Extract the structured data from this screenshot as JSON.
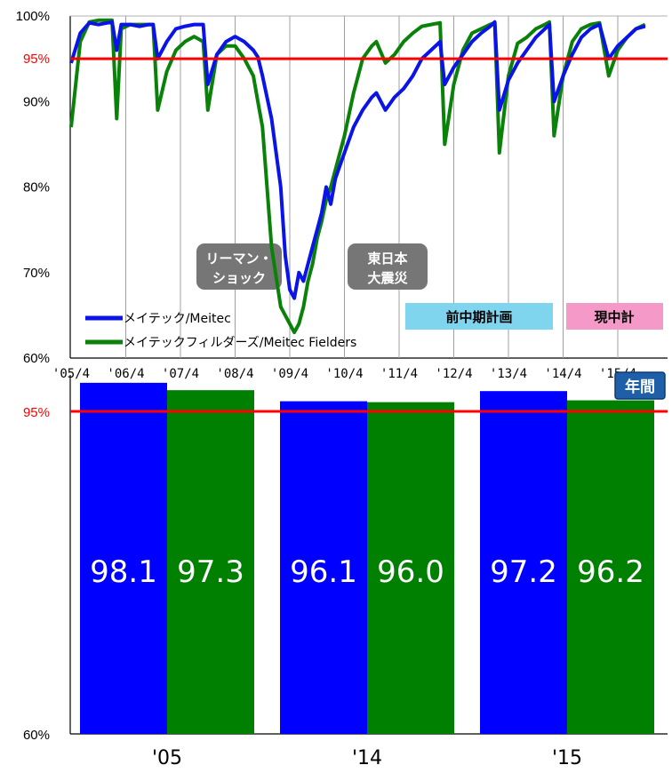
{
  "chart_data": [
    {
      "type": "line",
      "y_ticks": [
        "100%",
        "95%",
        "90%",
        "80%",
        "70%",
        "60%"
      ],
      "x_ticks": [
        "'05/4",
        "'06/4",
        "'07/4",
        "'08/4",
        "'09/4",
        "'10/4",
        "'11/4",
        "'12/4",
        "'13/4",
        "'14/4",
        "'15/4"
      ],
      "ylim": [
        60,
        100
      ],
      "x_start": "'05/4",
      "reference_line": {
        "value": 95,
        "label": "95%",
        "color": "#ff0000"
      },
      "grid": "vertical",
      "legend_position": "bottom-left",
      "annotations": [
        {
          "lines": [
            "リーマン・",
            "ショック"
          ],
          "at": "'08/10"
        },
        {
          "lines": [
            "東日本",
            "大震災"
          ],
          "at": "'11/3"
        }
      ],
      "period_tags": [
        {
          "label": "前中期計画",
          "color": "#7fd4ee",
          "from": "'11/4",
          "to": "'14/3"
        },
        {
          "label": "現中計",
          "color": "#f59ac8",
          "from": "'14/4",
          "to": "'16/3"
        }
      ],
      "series": [
        {
          "name": "メイテック/Meitec",
          "color": "#0a14e6",
          "points": [
            [
              0,
              94.5
            ],
            [
              2,
              98
            ],
            [
              4,
              99.2
            ],
            [
              6,
              99
            ],
            [
              8,
              99.2
            ],
            [
              9,
              99.3
            ],
            [
              10,
              96
            ],
            [
              11,
              99
            ],
            [
              13,
              99
            ],
            [
              15,
              98.8
            ],
            [
              17,
              99
            ],
            [
              18,
              99
            ],
            [
              19,
              95
            ],
            [
              21,
              97
            ],
            [
              23,
              98.5
            ],
            [
              25,
              98.8
            ],
            [
              27,
              99
            ],
            [
              29,
              99
            ],
            [
              30,
              92
            ],
            [
              32,
              95.5
            ],
            [
              34,
              97
            ],
            [
              36,
              97.6
            ],
            [
              38,
              97
            ],
            [
              40,
              96
            ],
            [
              41,
              95.2
            ],
            [
              42,
              93
            ],
            [
              44,
              88
            ],
            [
              46,
              80
            ],
            [
              47,
              72
            ],
            [
              48,
              68
            ],
            [
              49,
              67
            ],
            [
              50,
              70
            ],
            [
              51,
              69
            ],
            [
              52,
              71
            ],
            [
              53,
              73
            ],
            [
              54,
              75
            ],
            [
              55,
              77
            ],
            [
              56,
              80
            ],
            [
              57,
              78
            ],
            [
              58,
              81
            ],
            [
              60,
              84
            ],
            [
              62,
              87
            ],
            [
              64,
              89
            ],
            [
              66,
              90.5
            ],
            [
              67,
              91
            ],
            [
              69,
              89
            ],
            [
              71,
              90.5
            ],
            [
              73,
              91.5
            ],
            [
              75,
              93
            ],
            [
              77,
              95
            ],
            [
              79,
              96
            ],
            [
              81,
              97
            ],
            [
              82,
              92
            ],
            [
              84,
              94
            ],
            [
              86,
              95.5
            ],
            [
              88,
              97
            ],
            [
              90,
              98
            ],
            [
              92,
              98.8
            ],
            [
              93,
              99.3
            ],
            [
              94,
              89
            ],
            [
              96,
              92.5
            ],
            [
              98,
              94.5
            ],
            [
              100,
              96
            ],
            [
              102,
              97.5
            ],
            [
              104,
              98.5
            ],
            [
              105,
              99
            ],
            [
              106,
              90
            ],
            [
              108,
              93
            ],
            [
              110,
              95.5
            ],
            [
              112,
              97.5
            ],
            [
              114,
              98.5
            ],
            [
              116,
              99
            ],
            [
              118,
              95
            ],
            [
              120,
              96.5
            ],
            [
              122,
              97.5
            ],
            [
              124,
              98.5
            ],
            [
              126,
              98.8
            ]
          ]
        },
        {
          "name": "メイテックフィルダーズ/Meitec Fielders",
          "color": "#0a820a",
          "points": [
            [
              0,
              87
            ],
            [
              2,
              97
            ],
            [
              4,
              99.3
            ],
            [
              6,
              99.5
            ],
            [
              8,
              99.5
            ],
            [
              9,
              99.5
            ],
            [
              10,
              88
            ],
            [
              11,
              98.5
            ],
            [
              13,
              99
            ],
            [
              15,
              99
            ],
            [
              17,
              99
            ],
            [
              18,
              99
            ],
            [
              19,
              89
            ],
            [
              21,
              93.5
            ],
            [
              23,
              96
            ],
            [
              25,
              97
            ],
            [
              27,
              97.6
            ],
            [
              29,
              97
            ],
            [
              30,
              89
            ],
            [
              32,
              95.5
            ],
            [
              34,
              96.5
            ],
            [
              36,
              96.5
            ],
            [
              38,
              95
            ],
            [
              40,
              93
            ],
            [
              41,
              90
            ],
            [
              42,
              87
            ],
            [
              44,
              73
            ],
            [
              46,
              66
            ],
            [
              47,
              65
            ],
            [
              48,
              64
            ],
            [
              49,
              63
            ],
            [
              50,
              64
            ],
            [
              51,
              66
            ],
            [
              52,
              69
            ],
            [
              53,
              71
            ],
            [
              54,
              74
            ],
            [
              55,
              76
            ],
            [
              56,
              78.5
            ],
            [
              57,
              80
            ],
            [
              58,
              82
            ],
            [
              60,
              86
            ],
            [
              62,
              91
            ],
            [
              64,
              95
            ],
            [
              66,
              96.5
            ],
            [
              67,
              97
            ],
            [
              69,
              94.5
            ],
            [
              71,
              95.5
            ],
            [
              73,
              97
            ],
            [
              75,
              98
            ],
            [
              77,
              98.8
            ],
            [
              79,
              99
            ],
            [
              81,
              99.2
            ],
            [
              82,
              85
            ],
            [
              84,
              92
            ],
            [
              86,
              96
            ],
            [
              88,
              98
            ],
            [
              90,
              98.5
            ],
            [
              92,
              99
            ],
            [
              93,
              99.2
            ],
            [
              94,
              84
            ],
            [
              96,
              93
            ],
            [
              98,
              96.8
            ],
            [
              100,
              97.5
            ],
            [
              102,
              98.5
            ],
            [
              104,
              99
            ],
            [
              105,
              99.3
            ],
            [
              106,
              86
            ],
            [
              108,
              93
            ],
            [
              110,
              97
            ],
            [
              112,
              98.5
            ],
            [
              114,
              99
            ],
            [
              116,
              99.2
            ],
            [
              118,
              93
            ],
            [
              120,
              96
            ],
            [
              122,
              97.5
            ],
            [
              124,
              98.5
            ],
            [
              126,
              99
            ]
          ]
        }
      ]
    },
    {
      "type": "bar",
      "badge": "年間",
      "categories": [
        "'05",
        "'14",
        "'15"
      ],
      "ylim": [
        60,
        100
      ],
      "y_ticks": [
        "95%",
        "60%"
      ],
      "reference_line": {
        "value": 95,
        "label": "95%",
        "color": "#ff0000"
      },
      "series": [
        {
          "color": "#0000ff",
          "values": [
            98.1,
            96.1,
            97.2
          ]
        },
        {
          "color": "#008000",
          "values": [
            97.3,
            96.0,
            96.2
          ]
        }
      ],
      "value_labels": [
        [
          "98.1",
          "96.1",
          "97.2"
        ],
        [
          "97.3",
          "96.0",
          "96.2"
        ]
      ]
    }
  ]
}
